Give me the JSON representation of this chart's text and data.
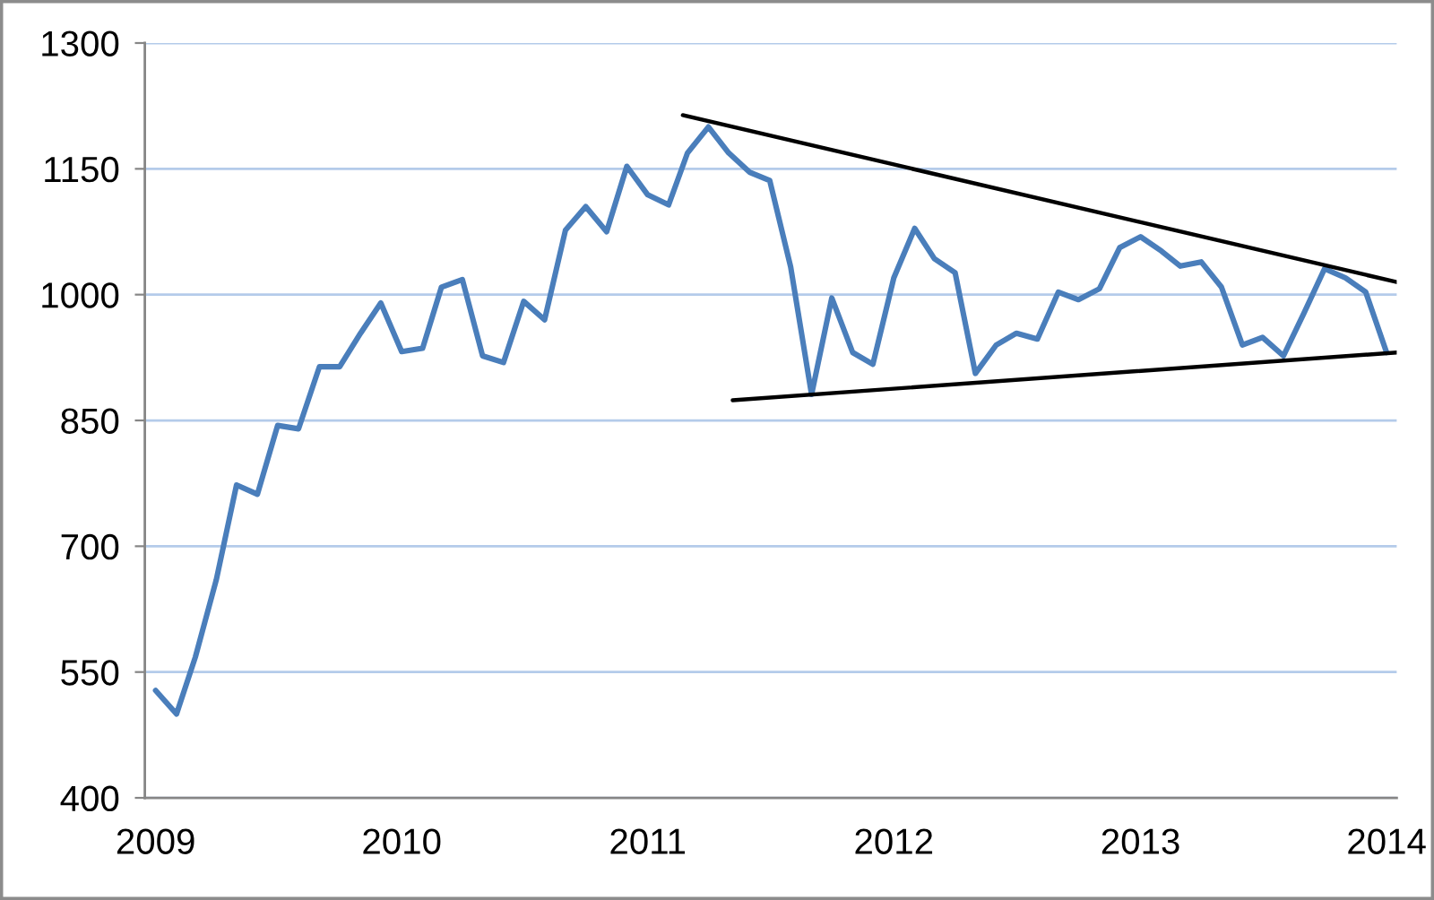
{
  "chart_data": {
    "type": "line",
    "x": [
      "2009-01",
      "2009-02",
      "2009-03",
      "2009-04",
      "2009-05",
      "2009-06",
      "2009-07",
      "2009-08",
      "2009-09",
      "2009-10",
      "2009-11",
      "2009-12",
      "2010-01",
      "2010-02",
      "2010-03",
      "2010-04",
      "2010-05",
      "2010-06",
      "2010-07",
      "2010-08",
      "2010-09",
      "2010-10",
      "2010-11",
      "2010-12",
      "2011-01",
      "2011-02",
      "2011-03",
      "2011-04",
      "2011-05",
      "2011-06",
      "2011-07",
      "2011-08",
      "2011-09",
      "2011-10",
      "2011-11",
      "2011-12",
      "2012-01",
      "2012-02",
      "2012-03",
      "2012-04",
      "2012-05",
      "2012-06",
      "2012-07",
      "2012-08",
      "2012-09",
      "2012-10",
      "2012-11",
      "2012-12",
      "2013-01",
      "2013-02",
      "2013-03",
      "2013-04",
      "2013-05",
      "2013-06",
      "2013-07",
      "2013-08",
      "2013-09",
      "2013-10",
      "2013-11",
      "2013-12",
      "2014-01"
    ],
    "series": [
      {
        "color": "#4a7ebb",
        "values": [
          528,
          500,
          568,
          660,
          773,
          762,
          844,
          840,
          914,
          914,
          954,
          990,
          932,
          936,
          1009,
          1018,
          927,
          919,
          992,
          970,
          1077,
          1105,
          1075,
          1153,
          1119,
          1107,
          1169,
          1200,
          1169,
          1146,
          1136,
          1033,
          881,
          996,
          931,
          917,
          1020,
          1079,
          1043,
          1026,
          906,
          940,
          954,
          947,
          1003,
          994,
          1007,
          1056,
          1069,
          1052,
          1034,
          1039,
          1009,
          940,
          949,
          927,
          979,
          1031,
          1020,
          1003,
          931
        ]
      },
      {
        "type": "line",
        "color": "#000000",
        "x": [
          "2011-02-22",
          "2014-01-16"
        ],
        "values": [
          1214,
          1015
        ]
      },
      {
        "type": "line",
        "color": "#000000",
        "x": [
          "2011-05-07",
          "2014-01-16"
        ],
        "values": [
          874,
          931
        ]
      }
    ],
    "xlim": [
      "2008-12-16",
      "2014-01-16"
    ],
    "xticks": [
      {
        "value": "2009-01",
        "label": "2009"
      },
      {
        "value": "2010-01",
        "label": "2010"
      },
      {
        "value": "2011-01",
        "label": "2011"
      },
      {
        "value": "2012-01",
        "label": "2012"
      },
      {
        "value": "2013-01",
        "label": "2013"
      },
      {
        "value": "2014-01",
        "label": "2014"
      }
    ],
    "ylim": [
      400,
      1300
    ],
    "yticks": [
      400,
      550,
      700,
      850,
      1000,
      1150,
      1300
    ],
    "grid": "y",
    "marker": "none",
    "line_style": "solid"
  }
}
